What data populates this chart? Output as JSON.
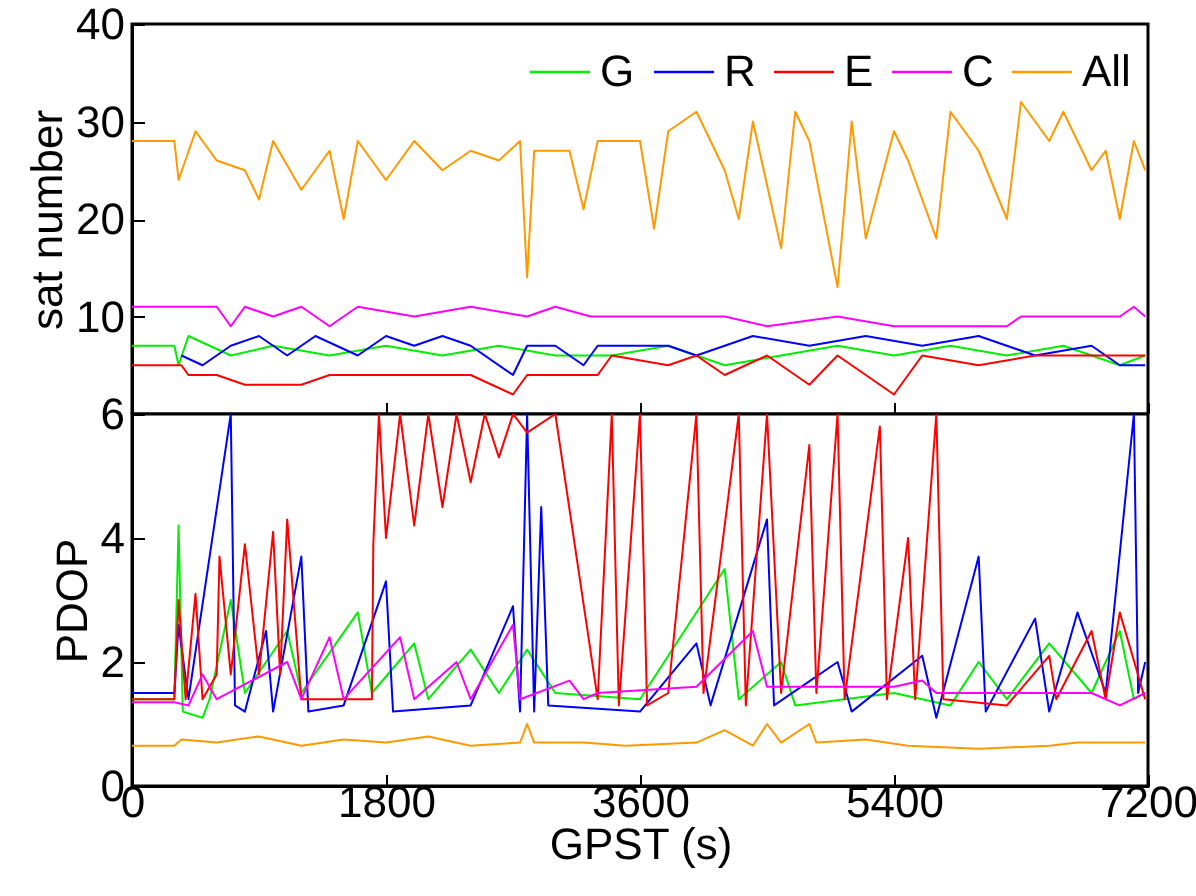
{
  "chart_data": [
    {
      "type": "line",
      "ylabel": "sat number",
      "xlim": [
        0,
        7200
      ],
      "xticks": [
        0,
        1800,
        3600,
        5400,
        7200
      ],
      "ylim": [
        0,
        40
      ],
      "yticks": [
        10,
        20,
        30,
        40
      ],
      "tick_labels": "y",
      "legend": "top right",
      "grid": false,
      "series": [
        {
          "name": "G",
          "color": "#00ee00",
          "x": [
            0,
            300,
            330,
            400,
            550,
            700,
            1000,
            1400,
            1800,
            2200,
            2600,
            3000,
            3400,
            3800,
            4200,
            4600,
            5000,
            5400,
            5800,
            6200,
            6600,
            7000,
            7180
          ],
          "values": [
            7,
            7,
            5,
            8,
            7,
            6,
            7,
            6,
            7,
            6,
            7,
            6,
            6,
            7,
            5,
            6,
            7,
            6,
            7,
            6,
            7,
            5,
            6
          ]
        },
        {
          "name": "R",
          "color": "#0000ff",
          "x": [
            350,
            500,
            700,
            900,
            1100,
            1300,
            1600,
            1800,
            2000,
            2200,
            2400,
            2700,
            2800,
            3000,
            3200,
            3300,
            3800,
            4000,
            4400,
            4800,
            5200,
            5600,
            6000,
            6400,
            6800,
            7000,
            7180
          ],
          "values": [
            6,
            5,
            7,
            8,
            6,
            8,
            6,
            8,
            7,
            8,
            7,
            4,
            7,
            7,
            5,
            7,
            7,
            6,
            8,
            7,
            8,
            7,
            8,
            6,
            7,
            5,
            5
          ]
        },
        {
          "name": "E",
          "color": "#ff0000",
          "x": [
            0,
            350,
            400,
            600,
            800,
            1200,
            1400,
            2000,
            2400,
            2700,
            2800,
            3300,
            3400,
            3800,
            4000,
            4200,
            4500,
            4800,
            5000,
            5400,
            5600,
            6000,
            6400,
            6800,
            7180
          ],
          "values": [
            5,
            5,
            4,
            4,
            3,
            3,
            4,
            4,
            4,
            2,
            4,
            4,
            6,
            5,
            6,
            4,
            6,
            3,
            6,
            2,
            6,
            5,
            6,
            6,
            6
          ]
        },
        {
          "name": "C",
          "color": "#ff00ff",
          "x": [
            0,
            600,
            700,
            800,
            1000,
            1200,
            1400,
            1600,
            2000,
            2400,
            2800,
            3000,
            3250,
            3700,
            4200,
            4500,
            5000,
            5400,
            6200,
            6300,
            7000,
            7100,
            7180
          ],
          "values": [
            11,
            11,
            9,
            11,
            10,
            11,
            9,
            11,
            10,
            11,
            10,
            11,
            10,
            10,
            10,
            9,
            10,
            9,
            9,
            10,
            10,
            11,
            10
          ]
        },
        {
          "name": "All",
          "color": "#ff9900",
          "x": [
            0,
            300,
            330,
            450,
            600,
            800,
            900,
            1000,
            1200,
            1400,
            1500,
            1600,
            1800,
            2000,
            2200,
            2400,
            2600,
            2750,
            2800,
            2850,
            3100,
            3200,
            3300,
            3600,
            3700,
            3800,
            4000,
            4200,
            4300,
            4400,
            4600,
            4700,
            4800,
            5000,
            5100,
            5200,
            5400,
            5500,
            5700,
            5800,
            6000,
            6200,
            6300,
            6500,
            6600,
            6800,
            6900,
            7000,
            7100,
            7180
          ],
          "values": [
            28,
            28,
            24,
            29,
            26,
            25,
            22,
            28,
            23,
            27,
            20,
            28,
            24,
            28,
            25,
            27,
            26,
            28,
            14,
            27,
            27,
            21,
            28,
            28,
            19,
            29,
            31,
            25,
            20,
            30,
            17,
            31,
            28,
            13,
            30,
            18,
            29,
            26,
            18,
            31,
            27,
            20,
            32,
            28,
            31,
            25,
            27,
            20,
            28,
            25
          ]
        }
      ]
    },
    {
      "type": "line",
      "xlabel": "GPST (s)",
      "ylabel": "PDOP",
      "xlim": [
        0,
        7200
      ],
      "xticks": [
        0,
        1800,
        3600,
        5400,
        7200
      ],
      "ylim": [
        0,
        6
      ],
      "yticks": [
        0,
        2,
        4,
        6
      ],
      "grid": false,
      "series": [
        {
          "color": "#00ee00",
          "x": [
            0,
            300,
            330,
            360,
            500,
            550,
            700,
            800,
            1100,
            1200,
            1600,
            1700,
            2000,
            2100,
            2400,
            2600,
            2800,
            3000,
            3600,
            4200,
            4300,
            4600,
            4700,
            5400,
            5800,
            6000,
            6200,
            6500,
            6800,
            7000,
            7100,
            7180
          ],
          "values": [
            1.4,
            1.4,
            4.2,
            1.2,
            1.1,
            1.4,
            3.0,
            1.5,
            2.5,
            1.5,
            2.8,
            1.5,
            2.3,
            1.4,
            2.2,
            1.5,
            2.2,
            1.5,
            1.4,
            3.5,
            1.4,
            2.0,
            1.3,
            1.5,
            1.3,
            2.0,
            1.4,
            2.3,
            1.5,
            2.5,
            1.4,
            1.5
          ]
        },
        {
          "color": "#0000ff",
          "x": [
            0,
            300,
            330,
            400,
            700,
            730,
            800,
            950,
            1000,
            1200,
            1250,
            1500,
            1800,
            1850,
            2400,
            2700,
            2750,
            2800,
            2850,
            2900,
            2950,
            3600,
            4000,
            4100,
            4500,
            4550,
            5000,
            5100,
            5600,
            5700,
            6000,
            6050,
            6400,
            6500,
            6700,
            6900,
            7100,
            7130,
            7180
          ],
          "values": [
            1.5,
            1.5,
            2.6,
            1.4,
            6.0,
            1.3,
            1.2,
            2.5,
            1.2,
            3.7,
            1.2,
            1.3,
            3.3,
            1.2,
            1.3,
            2.9,
            1.2,
            6.0,
            1.2,
            4.5,
            1.3,
            1.2,
            2.3,
            1.3,
            4.3,
            1.3,
            2.0,
            1.2,
            2.1,
            1.1,
            3.7,
            1.2,
            2.7,
            1.2,
            2.8,
            1.5,
            6.0,
            1.5,
            2.0
          ]
        },
        {
          "color": "#ff0000",
          "x": [
            0,
            300,
            330,
            380,
            450,
            500,
            600,
            620,
            700,
            800,
            900,
            1000,
            1050,
            1100,
            1200,
            1700,
            1710,
            1750,
            1800,
            1900,
            2000,
            2100,
            2200,
            2300,
            2400,
            2500,
            2600,
            2700,
            2800,
            3000,
            3300,
            3400,
            3450,
            3600,
            3650,
            3800,
            4000,
            4050,
            4300,
            4350,
            4500,
            4600,
            4800,
            4850,
            5000,
            5050,
            5300,
            5350,
            5500,
            5550,
            5700,
            5750,
            6200,
            6500,
            6550,
            6800,
            6900,
            7000,
            7180
          ],
          "values": [
            1.4,
            1.4,
            3.0,
            1.4,
            3.1,
            1.4,
            1.8,
            3.7,
            1.8,
            3.9,
            1.8,
            4.1,
            1.8,
            4.3,
            1.4,
            1.4,
            3.9,
            6.0,
            4.0,
            6.0,
            4.2,
            6.0,
            4.5,
            6.0,
            4.9,
            6.0,
            5.3,
            6.0,
            5.7,
            6.0,
            1.4,
            6.0,
            1.3,
            6.0,
            1.3,
            1.5,
            6.0,
            1.5,
            6.0,
            1.3,
            6.0,
            1.5,
            5.5,
            1.5,
            6.0,
            1.4,
            5.8,
            1.4,
            4.0,
            1.4,
            6.0,
            1.4,
            1.3,
            2.1,
            1.4,
            2.5,
            1.4,
            2.8,
            1.4
          ]
        },
        {
          "color": "#ff00ff",
          "x": [
            0,
            300,
            400,
            500,
            600,
            1100,
            1200,
            1400,
            1500,
            1900,
            2000,
            2300,
            2400,
            2700,
            2750,
            3100,
            3200,
            3300,
            4000,
            4400,
            4500,
            5400,
            5600,
            5700,
            6400,
            6800,
            7000,
            7180
          ],
          "values": [
            1.35,
            1.35,
            1.3,
            1.8,
            1.4,
            2.0,
            1.4,
            2.4,
            1.4,
            2.4,
            1.4,
            2.0,
            1.4,
            2.6,
            1.4,
            1.7,
            1.4,
            1.5,
            1.6,
            2.5,
            1.6,
            1.6,
            1.7,
            1.5,
            1.5,
            1.5,
            1.3,
            1.5
          ]
        },
        {
          "color": "#ff9900",
          "x": [
            0,
            300,
            350,
            600,
            900,
            1200,
            1500,
            1800,
            2100,
            2400,
            2750,
            2800,
            2850,
            3200,
            3500,
            4000,
            4200,
            4400,
            4500,
            4600,
            4800,
            4850,
            5200,
            5500,
            6000,
            6500,
            6700,
            7180
          ],
          "values": [
            0.65,
            0.65,
            0.75,
            0.7,
            0.8,
            0.65,
            0.75,
            0.7,
            0.8,
            0.65,
            0.7,
            1.0,
            0.7,
            0.7,
            0.65,
            0.7,
            0.9,
            0.65,
            1.0,
            0.7,
            1.0,
            0.7,
            0.75,
            0.65,
            0.6,
            0.65,
            0.7,
            0.7
          ]
        }
      ]
    }
  ]
}
